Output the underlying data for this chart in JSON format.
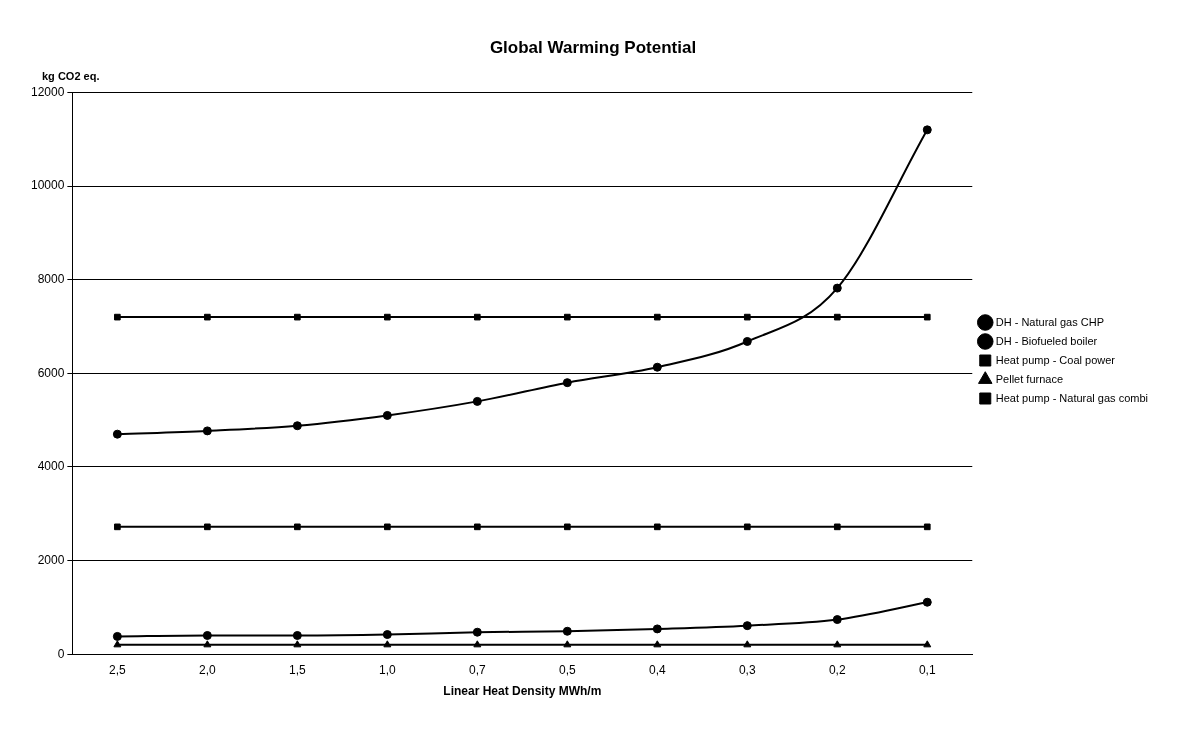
{
  "chart_data": {
    "type": "line",
    "title": "Global Warming Potential",
    "ylabel": "kg CO2 eq.",
    "xlabel": "Linear Heat Density MWh/m",
    "categories": [
      "2,5",
      "2,0",
      "1,5",
      "1,0",
      "0,7",
      "0,5",
      "0,4",
      "0,3",
      "0,2",
      "0,1"
    ],
    "series": [
      {
        "name": "DH - Natural gas CHP",
        "color": "#000000",
        "marker": "circle",
        "values": [
          4700,
          4770,
          4880,
          5100,
          5400,
          5800,
          6130,
          6680,
          7820,
          11200
        ]
      },
      {
        "name": "DH - Biofueled boiler",
        "color": "#000000",
        "marker": "circle",
        "values": [
          380,
          400,
          400,
          420,
          470,
          490,
          540,
          610,
          740,
          1110
        ]
      },
      {
        "name": "Heat pump - Coal power",
        "color": "#000000",
        "marker": "square",
        "values": [
          7200,
          7200,
          7200,
          7200,
          7200,
          7200,
          7200,
          7200,
          7200,
          7200
        ]
      },
      {
        "name": "Pellet furnace",
        "color": "#000000",
        "marker": "triangle",
        "values": [
          200,
          200,
          200,
          200,
          200,
          200,
          200,
          200,
          200,
          200
        ]
      },
      {
        "name": "Heat pump - Natural gas combi",
        "color": "#000000",
        "marker": "square",
        "values": [
          2720,
          2720,
          2720,
          2720,
          2720,
          2720,
          2720,
          2720,
          2720,
          2720
        ]
      }
    ],
    "ylim": [
      0,
      12000
    ],
    "yticks": [
      0,
      2000,
      4000,
      6000,
      8000,
      10000,
      12000
    ],
    "grid": "y",
    "legend": "right",
    "line_style": "solid"
  }
}
